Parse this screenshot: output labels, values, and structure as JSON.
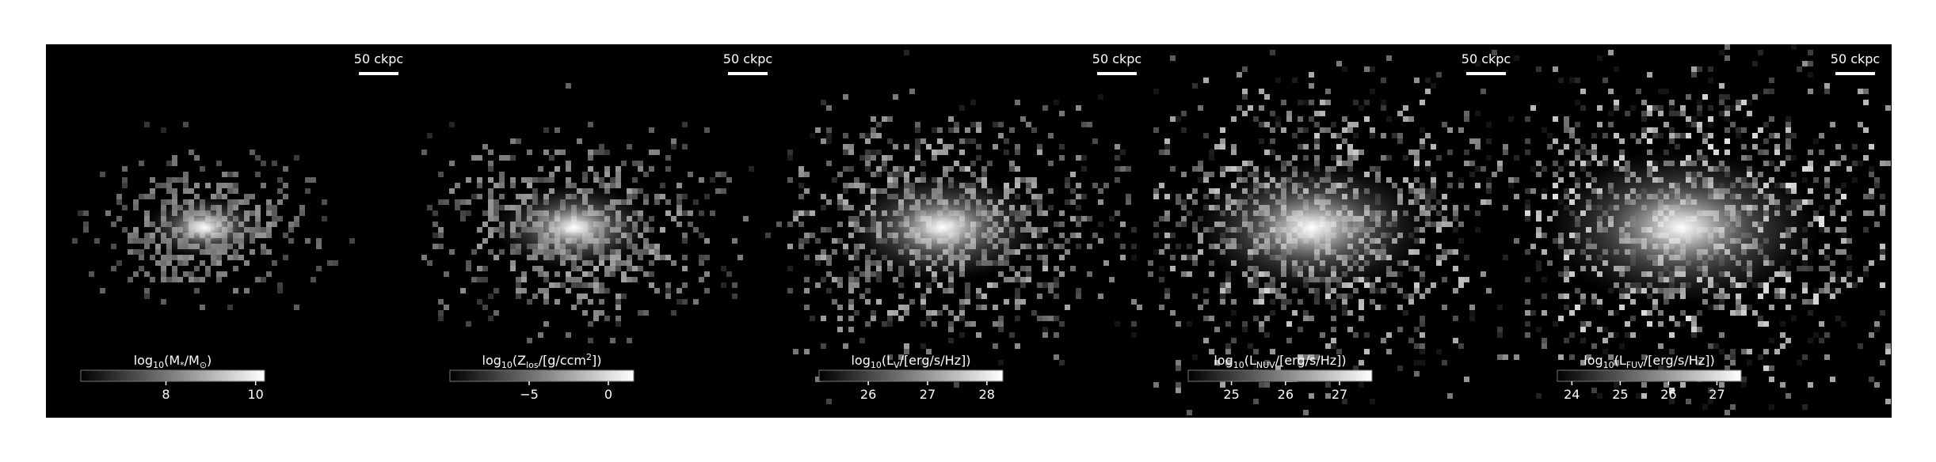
{
  "panels": [
    {
      "scale_label": "50 ckpc",
      "colorbar": {
        "label": [
          {
            "text": "log"
          },
          {
            "text": "10",
            "sub": true
          },
          {
            "text": "(M"
          },
          {
            "text": "*",
            "sub": true
          },
          {
            "text": "/M"
          },
          {
            "text": "⊙",
            "sub": true
          },
          {
            "text": ")"
          }
        ],
        "clim": [
          6.1,
          10.2
        ],
        "ticks": [
          8,
          10
        ]
      }
    },
    {
      "scale_label": "50 ckpc",
      "colorbar": {
        "label": [
          {
            "text": "log"
          },
          {
            "text": "10",
            "sub": true
          },
          {
            "text": "(Z"
          },
          {
            "text": "los",
            "sub": true
          },
          {
            "text": "/[g/ccm"
          },
          {
            "text": "2",
            "sup": true
          },
          {
            "text": "])"
          }
        ],
        "clim": [
          -10,
          1.6
        ],
        "ticks": [
          {
            "value": -5,
            "label": "−5"
          },
          0
        ]
      }
    },
    {
      "scale_label": "50 ckpc",
      "colorbar": {
        "label": [
          {
            "text": "log"
          },
          {
            "text": "10",
            "sub": true
          },
          {
            "text": "(L"
          },
          {
            "text": "V",
            "sub": true
          },
          {
            "text": "/[erg/s/Hz])"
          }
        ],
        "clim": [
          25.17,
          28.27
        ],
        "ticks": [
          26,
          27,
          28
        ]
      }
    },
    {
      "scale_label": "50 ckpc",
      "colorbar": {
        "label": [
          {
            "text": "log"
          },
          {
            "text": "10",
            "sub": true
          },
          {
            "text": "(L"
          },
          {
            "text": "NUV",
            "sub": true
          },
          {
            "text": "/[erg/s/Hz])"
          }
        ],
        "clim": [
          24.2,
          27.6
        ],
        "ticks": [
          25,
          26,
          27
        ]
      }
    },
    {
      "scale_label": "50 ckpc",
      "colorbar": {
        "label": [
          {
            "text": "log"
          },
          {
            "text": "10",
            "sub": true
          },
          {
            "text": "(L"
          },
          {
            "text": "FUV",
            "sub": true
          },
          {
            "text": "/[erg/s/Hz])"
          }
        ],
        "clim": [
          23.7,
          27.5
        ],
        "ticks": [
          24,
          25,
          26,
          27
        ]
      }
    }
  ]
}
